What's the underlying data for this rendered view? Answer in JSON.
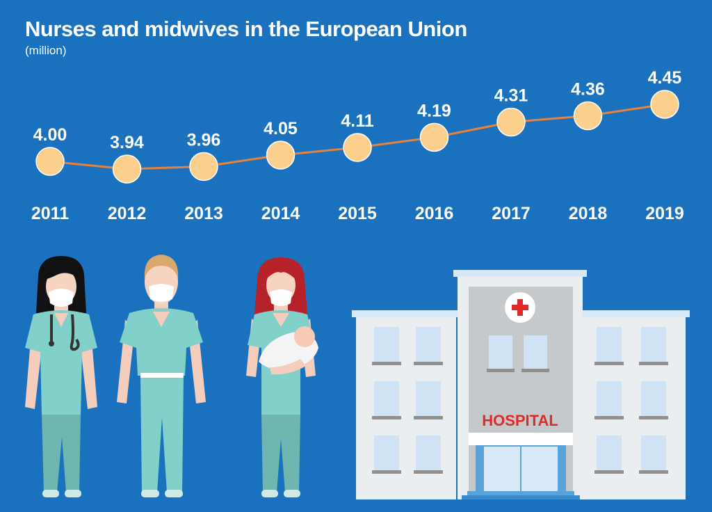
{
  "title": "Nurses and midwives in the European Union",
  "subtitle": "(million)",
  "chart_data": {
    "type": "line",
    "x": [
      "2011",
      "2012",
      "2013",
      "2014",
      "2015",
      "2016",
      "2017",
      "2018",
      "2019"
    ],
    "values": [
      4.0,
      3.94,
      3.96,
      4.05,
      4.11,
      4.19,
      4.31,
      4.36,
      4.45
    ],
    "value_labels": [
      "4.00",
      "3.94",
      "3.96",
      "4.05",
      "4.11",
      "4.19",
      "4.31",
      "4.36",
      "4.45"
    ],
    "title": "Nurses and midwives in the European Union",
    "ylabel": "(million)",
    "grid": false,
    "colors": {
      "line": "#e8823a",
      "marker": "#fcd08c",
      "marker_stroke": "#ffffff",
      "background": "#1a72bf"
    }
  },
  "illustration": {
    "hospital_sign": "HOSPITAL",
    "hospital_sign_color": "#e02a2a",
    "figures": [
      "female-nurse-with-stethoscope",
      "male-nurse",
      "midwife-holding-baby"
    ],
    "scrub_color": "#7fcfc9"
  }
}
